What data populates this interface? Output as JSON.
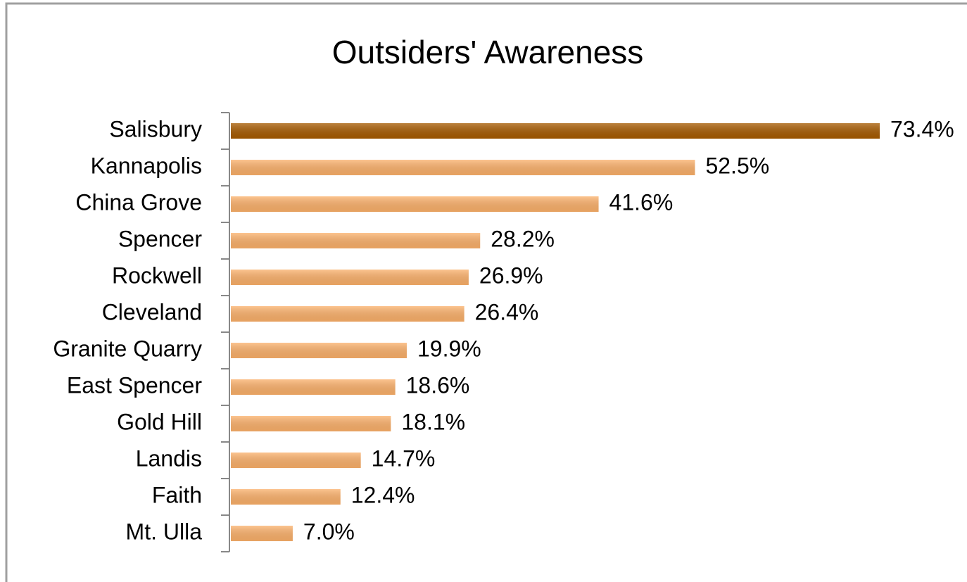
{
  "chart_data": {
    "type": "hbar",
    "title": "Outsiders' Awareness",
    "categories": [
      "Salisbury",
      "Kannapolis",
      "China Grove",
      "Spencer",
      "Rockwell",
      "Cleveland",
      "Granite Quarry",
      "East Spencer",
      "Gold Hill",
      "Landis",
      "Faith",
      "Mt. Ulla"
    ],
    "values": [
      73.4,
      52.5,
      41.6,
      28.2,
      26.9,
      26.4,
      19.9,
      18.6,
      18.1,
      14.7,
      12.4,
      7.0
    ],
    "value_labels": [
      "73.4%",
      "52.5%",
      "41.6%",
      "28.2%",
      "26.9%",
      "26.4%",
      "19.9%",
      "18.6%",
      "18.1%",
      "14.7%",
      "12.4%",
      "7.0%"
    ],
    "colors": [
      "#a65a00",
      "#fbb06a",
      "#fbb06a",
      "#fbb06a",
      "#fbb06a",
      "#fbb06a",
      "#fbb06a",
      "#fbb06a",
      "#fbb06a",
      "#fbb06a",
      "#fbb06a",
      "#fbb06a"
    ]
  }
}
